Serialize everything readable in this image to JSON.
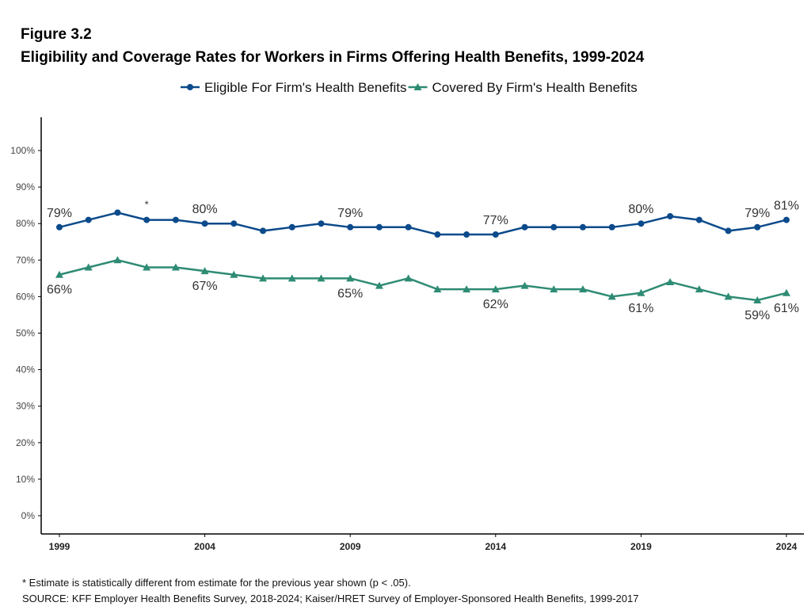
{
  "figure_label": "Figure 3.2",
  "footnote": "* Estimate is statistically different from estimate for the previous year shown (p < .05).",
  "source": "SOURCE: KFF Employer Health Benefits Survey, 2018-2024; Kaiser/HRET Survey of Employer-Sponsored Health Benefits, 1999-2017",
  "chart_data": {
    "type": "line",
    "title": "Eligibility and Coverage Rates for Workers in Firms Offering Health Benefits, 1999-2024",
    "xlabel": "",
    "ylabel": "",
    "x": [
      1999,
      2000,
      2001,
      2002,
      2003,
      2004,
      2005,
      2006,
      2007,
      2008,
      2009,
      2010,
      2011,
      2012,
      2013,
      2014,
      2015,
      2016,
      2017,
      2018,
      2019,
      2020,
      2021,
      2022,
      2023,
      2024
    ],
    "xticks": [
      1999,
      2004,
      2009,
      2014,
      2019,
      2024
    ],
    "yticks": [
      0,
      10,
      20,
      30,
      40,
      50,
      60,
      70,
      80,
      90,
      100
    ],
    "ylim": [
      -5,
      109
    ],
    "legend_position": "top",
    "grid": false,
    "series": [
      {
        "name": "Eligible For Firm's Health Benefits",
        "color": "#0b4a8b",
        "marker": "circle",
        "values": [
          79,
          81,
          83,
          81,
          81,
          80,
          80,
          78,
          79,
          80,
          79,
          79,
          79,
          77,
          77,
          77,
          79,
          79,
          79,
          79,
          80,
          82,
          81,
          78,
          79,
          81
        ],
        "labeled_years": [
          1999,
          2004,
          2009,
          2014,
          2019,
          2023,
          2024
        ]
      },
      {
        "name": "Covered By Firm's Health Benefits",
        "color": "#2e8b74",
        "marker": "triangle",
        "values": [
          66,
          68,
          70,
          68,
          68,
          67,
          66,
          65,
          65,
          65,
          65,
          63,
          65,
          62,
          62,
          62,
          63,
          62,
          62,
          60,
          61,
          64,
          62,
          60,
          59,
          61
        ],
        "labeled_years": [
          1999,
          2004,
          2009,
          2014,
          2019,
          2023,
          2024
        ]
      }
    ],
    "annotations": [
      {
        "text": "*",
        "year": 2002,
        "series": 0
      }
    ]
  }
}
